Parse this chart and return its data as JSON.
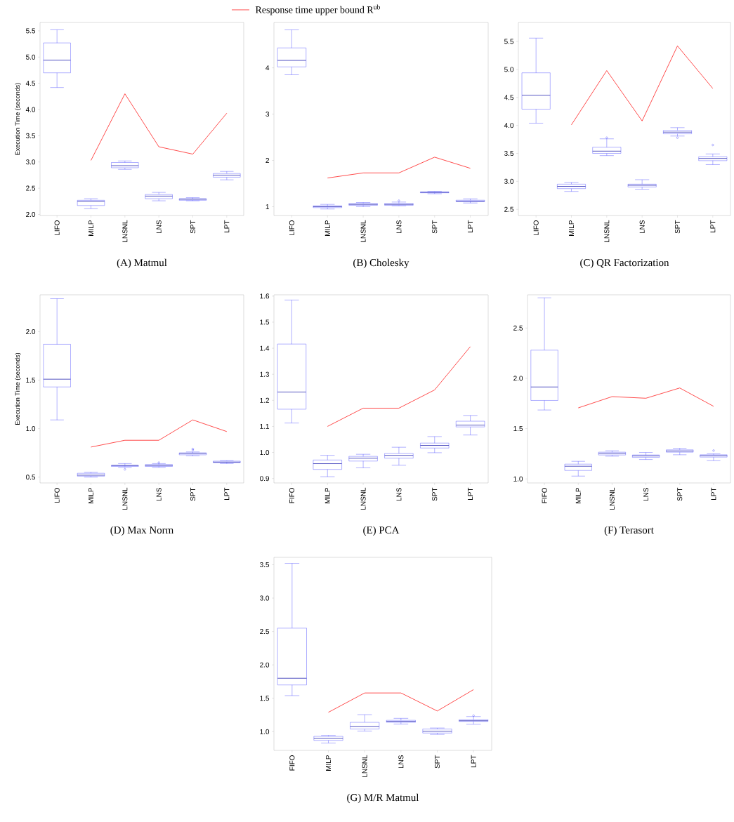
{
  "chart_data": [
    {
      "type": "box",
      "title": "(A) Matmul",
      "ylabel": "Execution Time (seconds)",
      "legend": "top",
      "categories": [
        "LIFO",
        "MILP",
        "LNSNL",
        "LNS",
        "SPT",
        "LPT"
      ],
      "ylim": [
        1.98,
        5.66
      ],
      "yticks": [
        {
          "value": 2,
          "label": "2.0"
        },
        2.5,
        {
          "value": 3,
          "label": "3.0"
        },
        3.5,
        {
          "value": 4,
          "label": "4.0"
        },
        4.5,
        {
          "value": 5,
          "label": "5.0"
        },
        5.5
      ],
      "series": [
        {
          "color": "#3b3bff",
          "boxes": [
            {
              "low": 4.42,
              "q1": 4.7,
              "median": 4.94,
              "q3": 5.27,
              "high": 5.52
            },
            {
              "low": 2.11,
              "q1": 2.17,
              "median": 2.25,
              "q3": 2.27,
              "high": 2.3
            },
            {
              "low": 2.86,
              "q1": 2.89,
              "median": 2.93,
              "q3": 2.99,
              "high": 3.02
            },
            {
              "low": 2.26,
              "q1": 2.3,
              "median": 2.35,
              "q3": 2.38,
              "high": 2.42
            },
            {
              "low": 2.26,
              "q1": 2.27,
              "median": 2.29,
              "q3": 2.3,
              "high": 2.32
            },
            {
              "low": 2.66,
              "q1": 2.71,
              "median": 2.75,
              "q3": 2.78,
              "high": 2.82
            }
          ]
        },
        {
          "type": "line",
          "name": "Response time upper bound R$^{ub}$",
          "color": "#ff2020",
          "values": [
            null,
            3.03,
            4.3,
            3.29,
            3.15,
            3.93
          ]
        }
      ]
    },
    {
      "type": "box",
      "title": "(B) Cholesky",
      "categories": [
        "LIFO",
        "MILP",
        "LNSNL",
        "LNS",
        "SPT",
        "LPT"
      ],
      "ylim": [
        0.81,
        4.98
      ],
      "yticks": [
        1,
        2,
        3,
        4
      ],
      "series": [
        {
          "color": "#3b3bff",
          "boxes": [
            {
              "low": 3.85,
              "q1": 4.02,
              "median": 4.16,
              "q3": 4.43,
              "high": 4.82
            },
            {
              "low": 0.95,
              "q1": 0.98,
              "median": 1.0,
              "q3": 1.02,
              "high": 1.05
            },
            {
              "low": 1.0,
              "q1": 1.03,
              "median": 1.05,
              "q3": 1.07,
              "high": 1.09
            },
            {
              "low": 1.02,
              "q1": 1.03,
              "median": 1.05,
              "q3": 1.07,
              "high": 1.1,
              "outliers": [
                1.13
              ]
            },
            {
              "low": 1.28,
              "q1": 1.3,
              "median": 1.31,
              "q3": 1.32,
              "high": 1.33
            },
            {
              "low": 1.08,
              "q1": 1.11,
              "median": 1.12,
              "q3": 1.14,
              "high": 1.17
            }
          ]
        },
        {
          "type": "line",
          "color": "#ff2020",
          "values": [
            null,
            1.62,
            1.73,
            1.73,
            2.07,
            1.83
          ]
        }
      ]
    },
    {
      "type": "box",
      "title": "(C) QR Factorization",
      "categories": [
        "LIFO",
        "MILP",
        "LNSNL",
        "LNS",
        "SPT",
        "LPT"
      ],
      "ylim": [
        2.39,
        5.84
      ],
      "yticks": [
        2.5,
        {
          "value": 3,
          "label": "3.0"
        },
        3.5,
        {
          "value": 4,
          "label": "4.0"
        },
        4.5,
        {
          "value": 5,
          "label": "5.0"
        },
        5.5
      ],
      "series": [
        {
          "color": "#3b3bff",
          "boxes": [
            {
              "low": 4.04,
              "q1": 4.29,
              "median": 4.54,
              "q3": 4.94,
              "high": 5.56
            },
            {
              "low": 2.82,
              "q1": 2.87,
              "median": 2.91,
              "q3": 2.95,
              "high": 2.98
            },
            {
              "low": 3.46,
              "q1": 3.5,
              "median": 3.54,
              "q3": 3.61,
              "high": 3.76,
              "outliers": [
                3.78
              ]
            },
            {
              "low": 2.86,
              "q1": 2.9,
              "median": 2.93,
              "q3": 2.95,
              "high": 3.03
            },
            {
              "low": 3.81,
              "q1": 3.85,
              "median": 3.88,
              "q3": 3.91,
              "high": 3.96,
              "outliers": [
                3.78
              ]
            },
            {
              "low": 3.3,
              "q1": 3.37,
              "median": 3.41,
              "q3": 3.44,
              "high": 3.49,
              "outliers": [
                3.65
              ]
            }
          ]
        },
        {
          "type": "line",
          "color": "#ff2020",
          "values": [
            null,
            4.01,
            4.98,
            4.08,
            5.42,
            4.66
          ]
        }
      ]
    },
    {
      "type": "box",
      "title": "(D) Max Norm",
      "ylabel": "Execution Time (seconds)",
      "categories": [
        "LIFO",
        "MILP",
        "LNSNL",
        "LNS",
        "SPT",
        "LPT"
      ],
      "ylim": [
        0.44,
        2.38
      ],
      "yticks": [
        0.5,
        {
          "value": 1,
          "label": "1.0"
        },
        1.5,
        {
          "value": 2,
          "label": "2.0"
        }
      ],
      "series": [
        {
          "color": "#3b3bff",
          "boxes": [
            {
              "low": 1.09,
              "q1": 1.43,
              "median": 1.51,
              "q3": 1.87,
              "high": 2.34
            },
            {
              "low": 0.5,
              "q1": 0.51,
              "median": 0.52,
              "q3": 0.54,
              "high": 0.55
            },
            {
              "low": 0.6,
              "q1": 0.61,
              "median": 0.62,
              "q3": 0.62,
              "high": 0.64,
              "outliers": [
                0.58
              ]
            },
            {
              "low": 0.6,
              "q1": 0.61,
              "median": 0.62,
              "q3": 0.63,
              "high": 0.64,
              "outliers": [
                0.65
              ]
            },
            {
              "low": 0.72,
              "q1": 0.73,
              "median": 0.745,
              "q3": 0.75,
              "high": 0.76,
              "outliers": [
                0.78,
                0.79
              ]
            },
            {
              "low": 0.64,
              "q1": 0.65,
              "median": 0.655,
              "q3": 0.665,
              "high": 0.67
            }
          ]
        },
        {
          "type": "line",
          "color": "#ff2020",
          "values": [
            null,
            0.81,
            0.88,
            0.88,
            1.09,
            0.97
          ]
        }
      ]
    },
    {
      "type": "box",
      "title": "(E) PCA",
      "categories": [
        "FIFO",
        "MILP",
        "LNSNL",
        "LNS",
        "SPT",
        "LPT"
      ],
      "ylim": [
        0.883,
        1.605
      ],
      "yticks": [
        0.9,
        {
          "value": 1,
          "label": "1.0"
        },
        1.1,
        1.2,
        1.3,
        1.4,
        1.5,
        1.6
      ],
      "series": [
        {
          "color": "#3b3bff",
          "boxes": [
            {
              "low": 1.113,
              "q1": 1.166,
              "median": 1.232,
              "q3": 1.416,
              "high": 1.585
            },
            {
              "low": 0.907,
              "q1": 0.935,
              "median": 0.957,
              "q3": 0.971,
              "high": 0.989
            },
            {
              "low": 0.941,
              "q1": 0.967,
              "median": 0.978,
              "q3": 0.985,
              "high": 0.993
            },
            {
              "low": 0.951,
              "q1": 0.978,
              "median": 0.989,
              "q3": 0.996,
              "high": 1.02
            },
            {
              "low": 0.999,
              "q1": 1.017,
              "median": 1.027,
              "q3": 1.036,
              "high": 1.061
            },
            {
              "low": 1.067,
              "q1": 1.098,
              "median": 1.105,
              "q3": 1.12,
              "high": 1.142
            }
          ]
        },
        {
          "type": "line",
          "color": "#ff2020",
          "values": [
            null,
            1.1,
            1.17,
            1.17,
            1.24,
            1.406
          ]
        }
      ]
    },
    {
      "type": "box",
      "title": "(F) Terasort",
      "categories": [
        "FIFO",
        "MILP",
        "LNSNL",
        "LNS",
        "SPT",
        "LPT"
      ],
      "ylim": [
        0.96,
        2.83
      ],
      "yticks": [
        {
          "value": 1,
          "label": "1.0"
        },
        1.5,
        {
          "value": 2,
          "label": "2.0"
        },
        2.5
      ],
      "series": [
        {
          "color": "#3b3bff",
          "boxes": [
            {
              "low": 1.685,
              "q1": 1.78,
              "median": 1.914,
              "q3": 2.28,
              "high": 2.8
            },
            {
              "low": 1.028,
              "q1": 1.084,
              "median": 1.126,
              "q3": 1.147,
              "high": 1.175
            },
            {
              "low": 1.226,
              "q1": 1.238,
              "median": 1.254,
              "q3": 1.266,
              "high": 1.28
            },
            {
              "low": 1.193,
              "q1": 1.214,
              "median": 1.228,
              "q3": 1.238,
              "high": 1.263
            },
            {
              "low": 1.24,
              "q1": 1.266,
              "median": 1.277,
              "q3": 1.289,
              "high": 1.305
            },
            {
              "low": 1.182,
              "q1": 1.217,
              "median": 1.231,
              "q3": 1.24,
              "high": 1.25,
              "outliers": [
                1.282
              ]
            }
          ]
        },
        {
          "type": "line",
          "color": "#ff2020",
          "values": [
            null,
            1.706,
            1.818,
            1.802,
            1.904,
            1.722
          ]
        }
      ]
    },
    {
      "type": "box",
      "title": "(G) M/R Matmul",
      "categories": [
        "FIFO",
        "MILP",
        "LNSNL",
        "LNS",
        "SPT",
        "LPT"
      ],
      "ylim": [
        0.72,
        3.61
      ],
      "yticks": [
        {
          "value": 1,
          "label": "1.0"
        },
        1.5,
        {
          "value": 2,
          "label": "2.0"
        },
        2.5,
        {
          "value": 3,
          "label": "3.0"
        },
        3.5
      ],
      "series": [
        {
          "color": "#3b3bff",
          "boxes": [
            {
              "low": 1.54,
              "q1": 1.7,
              "median": 1.8,
              "q3": 2.55,
              "high": 3.52
            },
            {
              "low": 0.83,
              "q1": 0.87,
              "median": 0.9,
              "q3": 0.93,
              "high": 0.944
            },
            {
              "low": 1.01,
              "q1": 1.04,
              "median": 1.08,
              "q3": 1.14,
              "high": 1.255
            },
            {
              "low": 1.115,
              "q1": 1.14,
              "median": 1.155,
              "q3": 1.17,
              "high": 1.2
            },
            {
              "low": 0.96,
              "q1": 0.98,
              "median": 1.007,
              "q3": 1.04,
              "high": 1.055
            },
            {
              "low": 1.112,
              "q1": 1.154,
              "median": 1.164,
              "q3": 1.18,
              "high": 1.227,
              "outliers": [
                1.24
              ]
            }
          ]
        },
        {
          "type": "line",
          "color": "#ff2020",
          "values": [
            null,
            1.29,
            1.58,
            1.58,
            1.31,
            1.63
          ]
        }
      ]
    }
  ]
}
